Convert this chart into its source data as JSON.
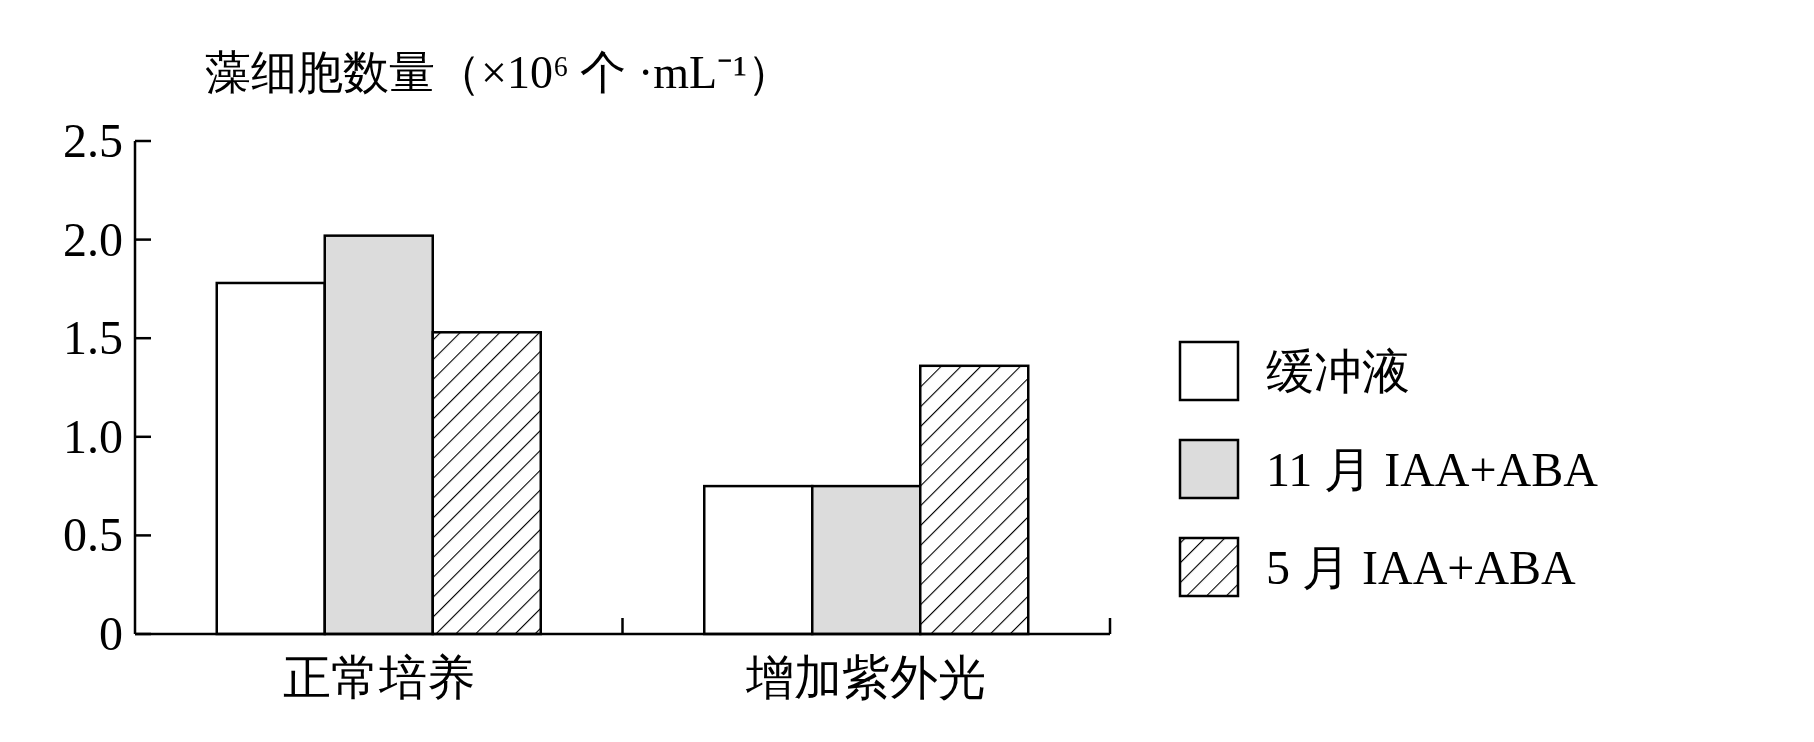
{
  "chart_data": {
    "type": "bar",
    "ylabel": "藻细胞数量（×10⁶ 个 ·mL⁻¹）",
    "categories": [
      "正常培养",
      "增加紫外光"
    ],
    "series": [
      {
        "name": "缓冲液",
        "color": "#ffffff",
        "values": [
          1.78,
          0.75
        ]
      },
      {
        "name": "11 月 IAA+ABA",
        "color": "#dcdcdc",
        "values": [
          2.02,
          0.75
        ]
      },
      {
        "name": "5 月 IAA+ABA",
        "color": "#000000",
        "values": [
          1.53,
          1.36
        ]
      }
    ],
    "ylim": [
      0,
      2.5
    ],
    "yticks": [
      0,
      {
        "value": 0.5,
        "label": "0.5"
      },
      {
        "value": 1,
        "label": "1.0"
      },
      {
        "value": 1.5,
        "label": "1.5"
      },
      {
        "value": 2,
        "label": "2.0"
      },
      {
        "value": 2.5,
        "label": "2.5"
      }
    ],
    "grid": false,
    "legend": "right"
  }
}
